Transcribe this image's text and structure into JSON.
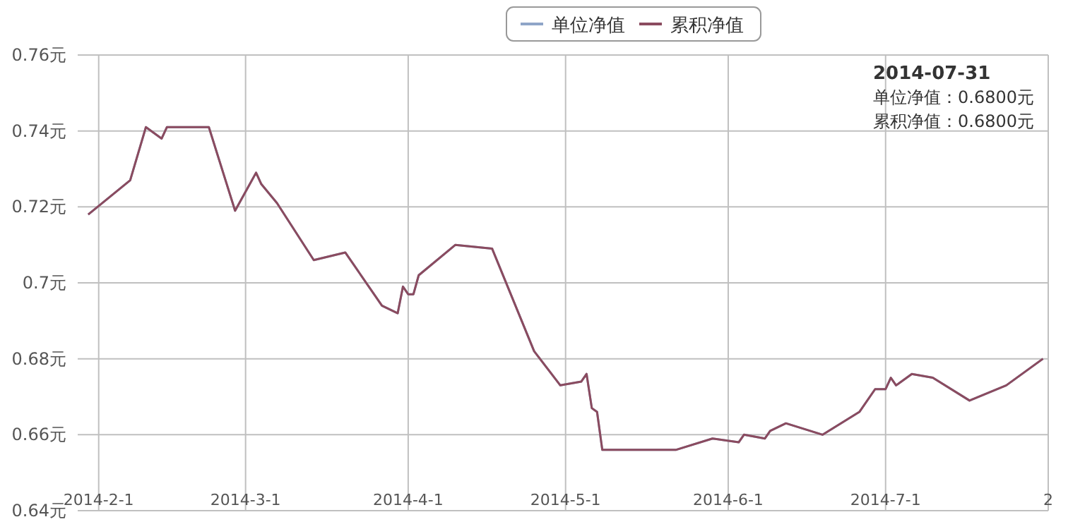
{
  "chart_data": {
    "type": "line",
    "x": [
      "2014-01-30",
      "2014-02-07",
      "2014-02-10",
      "2014-02-13",
      "2014-02-14",
      "2014-02-22",
      "2014-02-27",
      "2014-03-03",
      "2014-03-04",
      "2014-03-07",
      "2014-03-14",
      "2014-03-20",
      "2014-03-27",
      "2014-03-30",
      "2014-03-31",
      "2014-04-01",
      "2014-04-02",
      "2014-04-03",
      "2014-04-10",
      "2014-04-17",
      "2014-04-25",
      "2014-04-30",
      "2014-05-04",
      "2014-05-05",
      "2014-05-06",
      "2014-05-07",
      "2014-05-08",
      "2014-05-22",
      "2014-05-29",
      "2014-06-03",
      "2014-06-04",
      "2014-06-08",
      "2014-06-09",
      "2014-06-12",
      "2014-06-19",
      "2014-06-26",
      "2014-06-29",
      "2014-07-01",
      "2014-07-02",
      "2014-07-03",
      "2014-07-06",
      "2014-07-10",
      "2014-07-17",
      "2014-07-24",
      "2014-07-31"
    ],
    "series": [
      {
        "name": "单位净值",
        "color": "#8fa5c8",
        "values": [
          0.718,
          0.727,
          0.741,
          0.738,
          0.741,
          0.741,
          0.719,
          0.729,
          0.726,
          0.721,
          0.706,
          0.708,
          0.694,
          0.692,
          0.699,
          0.697,
          0.697,
          0.702,
          0.71,
          0.709,
          0.682,
          0.673,
          0.674,
          0.676,
          0.667,
          0.666,
          0.656,
          0.656,
          0.659,
          0.658,
          0.66,
          0.659,
          0.661,
          0.663,
          0.66,
          0.666,
          0.672,
          0.672,
          0.675,
          0.673,
          0.676,
          0.675,
          0.669,
          0.673,
          0.68
        ]
      },
      {
        "name": "累积净值",
        "color": "#8b4b5f",
        "values": [
          0.718,
          0.727,
          0.741,
          0.738,
          0.741,
          0.741,
          0.719,
          0.729,
          0.726,
          0.721,
          0.706,
          0.708,
          0.694,
          0.692,
          0.699,
          0.697,
          0.697,
          0.702,
          0.71,
          0.709,
          0.682,
          0.673,
          0.674,
          0.676,
          0.667,
          0.666,
          0.656,
          0.656,
          0.659,
          0.658,
          0.66,
          0.659,
          0.661,
          0.663,
          0.66,
          0.666,
          0.672,
          0.672,
          0.675,
          0.673,
          0.676,
          0.675,
          0.669,
          0.673,
          0.68
        ]
      }
    ],
    "xlim": [
      "2014-01-28",
      "2014-08-01"
    ],
    "xticks": [
      {
        "value": "2014-02-01",
        "label": "2014-2-1"
      },
      {
        "value": "2014-03-01",
        "label": "2014-3-1"
      },
      {
        "value": "2014-04-01",
        "label": "2014-4-1"
      },
      {
        "value": "2014-05-01",
        "label": "2014-5-1"
      },
      {
        "value": "2014-06-01",
        "label": "2014-6-1"
      },
      {
        "value": "2014-07-01",
        "label": "2014-7-1"
      },
      {
        "value": "2014-08-01",
        "label": "2"
      }
    ],
    "ylim": [
      0.64,
      0.76
    ],
    "yticks": [
      {
        "value": 0.64,
        "label": "0.64元"
      },
      {
        "value": 0.66,
        "label": "0.66元"
      },
      {
        "value": 0.68,
        "label": "0.68元"
      },
      {
        "value": 0.7,
        "label": "0.7元"
      },
      {
        "value": 0.72,
        "label": "0.72元"
      },
      {
        "value": 0.74,
        "label": "0.74元"
      },
      {
        "value": 0.76,
        "label": "0.76元"
      }
    ],
    "annotations": [
      "2014-07-31",
      "单位净值：0.6800元",
      "累积净值：0.6800元"
    ],
    "grid": true,
    "legend": "top",
    "marker": "none",
    "line_style": "solid"
  }
}
